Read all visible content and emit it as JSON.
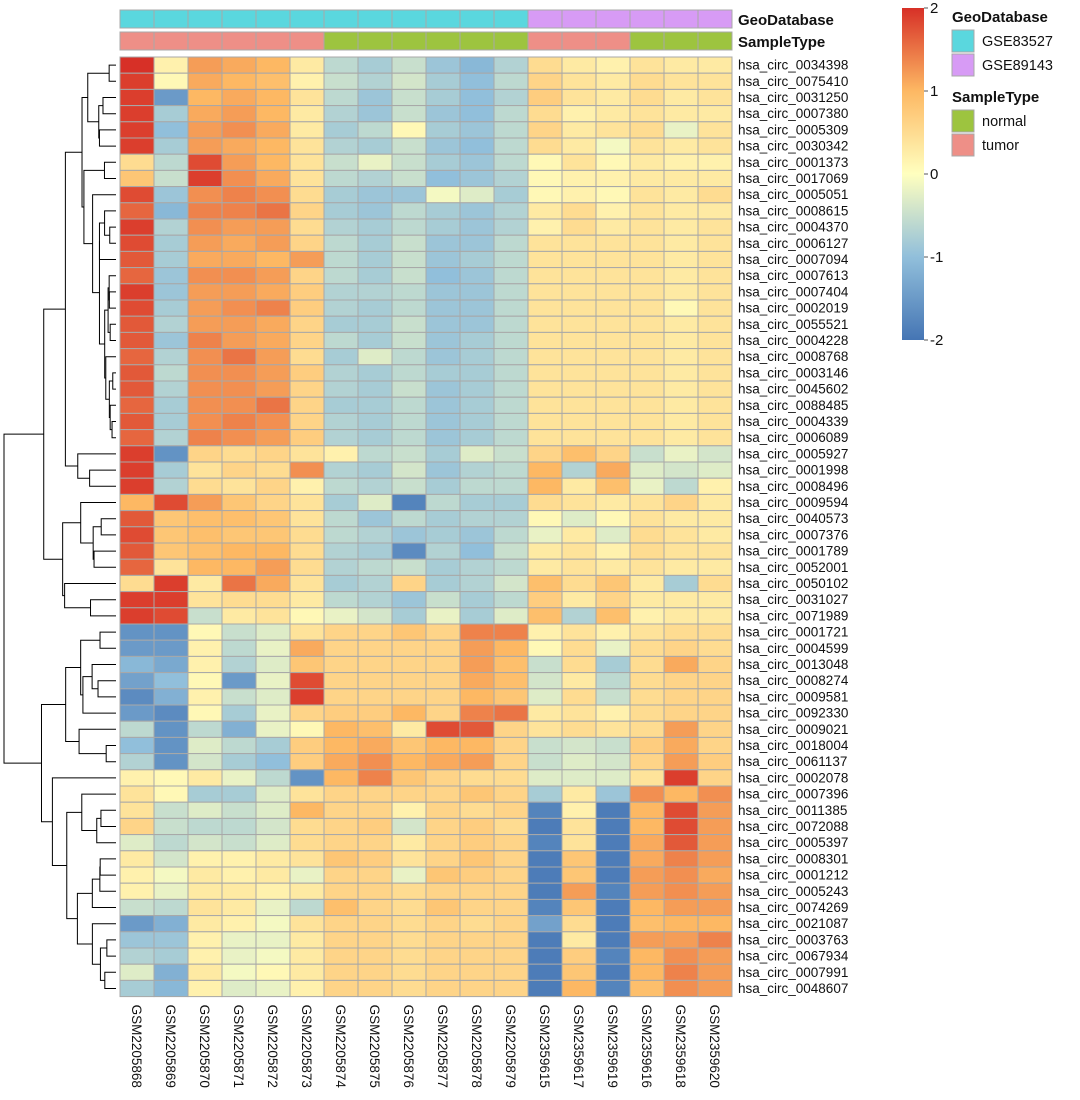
{
  "chart_data": {
    "type": "heatmap",
    "title": "",
    "columns": [
      "GSM2205868",
      "GSM2205869",
      "GSM2205870",
      "GSM2205871",
      "GSM2205872",
      "GSM2205873",
      "GSM2205874",
      "GSM2205875",
      "GSM2205876",
      "GSM2205877",
      "GSM2205878",
      "GSM2205879",
      "GSM2359615",
      "GSM2359617",
      "GSM2359619",
      "GSM2359616",
      "GSM2359618",
      "GSM2359620"
    ],
    "rows": [
      "hsa_circ_0034398",
      "hsa_circ_0075410",
      "hsa_circ_0031250",
      "hsa_circ_0007380",
      "hsa_circ_0005309",
      "hsa_circ_0030342",
      "hsa_circ_0001373",
      "hsa_circ_0017069",
      "hsa_circ_0005051",
      "hsa_circ_0008615",
      "hsa_circ_0004370",
      "hsa_circ_0006127",
      "hsa_circ_0007094",
      "hsa_circ_0007613",
      "hsa_circ_0007404",
      "hsa_circ_0002019",
      "hsa_circ_0055521",
      "hsa_circ_0004228",
      "hsa_circ_0008768",
      "hsa_circ_0003146",
      "hsa_circ_0045602",
      "hsa_circ_0088485",
      "hsa_circ_0004339",
      "hsa_circ_0006089",
      "hsa_circ_0005927",
      "hsa_circ_0001998",
      "hsa_circ_0008496",
      "hsa_circ_0009594",
      "hsa_circ_0040573",
      "hsa_circ_0007376",
      "hsa_circ_0001789",
      "hsa_circ_0052001",
      "hsa_circ_0050102",
      "hsa_circ_0031027",
      "hsa_circ_0071989",
      "hsa_circ_0001721",
      "hsa_circ_0004599",
      "hsa_circ_0013048",
      "hsa_circ_0008274",
      "hsa_circ_0009581",
      "hsa_circ_0092330",
      "hsa_circ_0009021",
      "hsa_circ_0018004",
      "hsa_circ_0061137",
      "hsa_circ_0002078",
      "hsa_circ_0007396",
      "hsa_circ_0011385",
      "hsa_circ_0072088",
      "hsa_circ_0005397",
      "hsa_circ_0008301",
      "hsa_circ_0001212",
      "hsa_circ_0005243",
      "hsa_circ_0074269",
      "hsa_circ_0021087",
      "hsa_circ_0003763",
      "hsa_circ_0067934",
      "hsa_circ_0007991",
      "hsa_circ_0048607"
    ],
    "values": [
      [
        2.0,
        0.2,
        1.2,
        1.1,
        1.0,
        0.3,
        -0.6,
        -0.8,
        -0.5,
        -0.9,
        -1.1,
        -0.7,
        0.5,
        0.3,
        0.2,
        0.4,
        0.3,
        0.3
      ],
      [
        1.9,
        0.1,
        1.1,
        1.0,
        0.9,
        0.2,
        -0.5,
        -0.7,
        -0.4,
        -0.8,
        -1.0,
        -0.6,
        0.6,
        0.4,
        0.3,
        0.5,
        0.4,
        0.4
      ],
      [
        1.9,
        -1.5,
        1.0,
        1.1,
        1.0,
        0.4,
        -0.6,
        -0.9,
        -0.5,
        -0.8,
        -1.0,
        -0.7,
        0.7,
        0.4,
        0.3,
        0.5,
        0.3,
        0.4
      ],
      [
        1.9,
        -0.8,
        1.1,
        1.2,
        1.0,
        0.3,
        -0.7,
        -0.9,
        -0.5,
        -0.9,
        -1.0,
        -0.6,
        0.5,
        0.2,
        0.3,
        0.4,
        0.3,
        0.3
      ],
      [
        1.9,
        -1.0,
        1.2,
        1.3,
        1.1,
        0.3,
        -0.8,
        -0.6,
        0.1,
        -0.8,
        -0.9,
        -0.6,
        0.6,
        0.3,
        0.4,
        0.5,
        -0.2,
        0.4
      ],
      [
        1.9,
        -0.8,
        1.2,
        1.1,
        1.0,
        0.4,
        -0.7,
        -0.8,
        -0.5,
        -0.9,
        -1.0,
        -0.6,
        0.5,
        0.3,
        -0.1,
        0.4,
        0.3,
        0.4
      ],
      [
        0.5,
        -0.6,
        1.8,
        1.2,
        1.0,
        0.4,
        -0.5,
        -0.2,
        -0.5,
        -0.8,
        -0.9,
        -0.6,
        0.1,
        0.4,
        0.1,
        0.3,
        0.2,
        0.2
      ],
      [
        0.8,
        -0.5,
        1.9,
        1.3,
        1.1,
        0.4,
        -0.6,
        -0.7,
        -0.5,
        -1.0,
        -0.9,
        -0.7,
        0.1,
        0.2,
        0.2,
        0.3,
        0.3,
        0.3
      ],
      [
        1.8,
        -0.9,
        1.3,
        1.4,
        1.3,
        0.5,
        -0.8,
        -0.9,
        -0.9,
        -0.1,
        -0.3,
        -0.8,
        0.1,
        0.2,
        0.1,
        0.4,
        0.3,
        0.5
      ],
      [
        1.6,
        -1.1,
        1.4,
        1.4,
        1.5,
        0.6,
        -0.8,
        -0.9,
        -0.6,
        -0.8,
        -0.9,
        -0.7,
        0.3,
        0.5,
        0.2,
        0.4,
        0.3,
        0.3
      ],
      [
        1.9,
        -0.7,
        1.3,
        1.2,
        1.2,
        0.5,
        -0.7,
        -0.8,
        -0.6,
        -0.8,
        -0.9,
        -0.7,
        0.2,
        0.5,
        0.3,
        0.4,
        0.3,
        0.4
      ],
      [
        1.8,
        -0.8,
        1.2,
        1.1,
        1.2,
        0.6,
        -0.6,
        -0.8,
        -0.5,
        -0.9,
        -0.9,
        -0.6,
        0.4,
        0.4,
        0.4,
        0.4,
        0.3,
        0.4
      ],
      [
        1.7,
        -0.8,
        1.1,
        1.1,
        1.0,
        1.2,
        -0.6,
        -0.8,
        -0.5,
        -0.9,
        -0.8,
        -0.6,
        0.4,
        0.4,
        0.4,
        0.4,
        0.3,
        0.4
      ],
      [
        1.6,
        -0.9,
        1.3,
        1.3,
        1.2,
        0.6,
        -0.6,
        -0.8,
        -0.5,
        -1.0,
        -0.9,
        -0.6,
        0.4,
        0.4,
        0.4,
        0.4,
        0.3,
        0.4
      ],
      [
        1.9,
        -0.9,
        1.2,
        1.2,
        1.1,
        0.7,
        -0.7,
        -0.7,
        -0.6,
        -0.9,
        -0.9,
        -0.6,
        0.4,
        0.4,
        0.4,
        0.4,
        0.3,
        0.4
      ],
      [
        1.8,
        -0.8,
        1.2,
        1.3,
        1.4,
        0.7,
        -0.7,
        -0.8,
        -0.6,
        -0.9,
        -0.9,
        -0.6,
        0.4,
        0.4,
        0.4,
        0.4,
        0.1,
        0.4
      ],
      [
        1.7,
        -0.7,
        1.2,
        1.2,
        1.1,
        0.6,
        -0.8,
        -0.8,
        -0.5,
        -0.9,
        -0.9,
        -0.6,
        0.4,
        0.4,
        0.4,
        0.4,
        0.3,
        0.4
      ],
      [
        1.7,
        -0.9,
        1.4,
        1.2,
        1.1,
        0.6,
        -0.6,
        -0.8,
        -0.5,
        -0.9,
        -0.8,
        -0.6,
        0.4,
        0.4,
        0.4,
        0.4,
        0.3,
        0.4
      ],
      [
        1.6,
        -0.7,
        1.3,
        1.5,
        1.2,
        0.5,
        -0.8,
        -0.3,
        -0.6,
        -0.9,
        -0.8,
        -0.6,
        0.4,
        0.4,
        0.4,
        0.4,
        0.3,
        0.4
      ],
      [
        1.7,
        -0.6,
        1.3,
        1.3,
        1.2,
        0.7,
        -0.7,
        -0.8,
        -0.6,
        -0.8,
        -0.8,
        -0.6,
        0.4,
        0.4,
        0.4,
        0.4,
        0.3,
        0.4
      ],
      [
        1.7,
        -0.7,
        1.3,
        1.3,
        1.2,
        0.6,
        -0.7,
        -0.8,
        -0.5,
        -0.9,
        -0.8,
        -0.6,
        0.4,
        0.4,
        0.4,
        0.4,
        0.3,
        0.4
      ],
      [
        1.6,
        -0.8,
        1.3,
        1.3,
        1.5,
        0.6,
        -0.8,
        -0.8,
        -0.6,
        -0.9,
        -0.8,
        -0.6,
        0.4,
        0.4,
        0.4,
        0.4,
        0.3,
        0.4
      ],
      [
        1.7,
        -0.8,
        1.3,
        1.4,
        1.3,
        0.6,
        -0.7,
        -0.8,
        -0.6,
        -0.9,
        -0.8,
        -0.6,
        0.4,
        0.4,
        0.4,
        0.4,
        0.3,
        0.4
      ],
      [
        1.6,
        -0.7,
        1.4,
        1.3,
        1.2,
        0.7,
        -0.7,
        -0.8,
        -0.6,
        -0.9,
        -0.8,
        -0.6,
        0.4,
        0.4,
        0.4,
        0.4,
        0.3,
        0.4
      ],
      [
        1.9,
        -1.6,
        0.6,
        0.5,
        0.6,
        0.4,
        0.2,
        -0.6,
        -0.5,
        -0.8,
        -0.3,
        -0.5,
        0.6,
        0.9,
        0.6,
        -0.5,
        -0.2,
        -0.4
      ],
      [
        1.9,
        -0.8,
        0.4,
        0.6,
        0.5,
        1.3,
        -0.7,
        -0.8,
        -0.4,
        -0.9,
        -0.7,
        -0.6,
        1.0,
        -0.7,
        1.1,
        -0.3,
        -0.4,
        -0.3
      ],
      [
        1.9,
        -0.7,
        0.5,
        0.4,
        0.6,
        0.2,
        -0.6,
        -0.7,
        -0.5,
        -0.8,
        -0.6,
        -0.6,
        1.0,
        0.3,
        0.9,
        -0.2,
        -0.6,
        0.2
      ],
      [
        1.0,
        1.8,
        1.2,
        0.8,
        0.6,
        0.4,
        -0.8,
        -0.3,
        -1.8,
        -0.6,
        -0.8,
        -0.8,
        0.5,
        0.4,
        0.3,
        0.4,
        0.6,
        0.3
      ],
      [
        1.7,
        0.8,
        0.9,
        0.9,
        0.8,
        0.4,
        -0.6,
        -0.9,
        -0.6,
        -0.8,
        -0.7,
        -0.7,
        0.1,
        -0.3,
        0.1,
        0.4,
        0.3,
        0.3
      ],
      [
        1.8,
        0.8,
        0.9,
        0.8,
        0.8,
        0.5,
        -0.6,
        -0.7,
        -0.9,
        -0.8,
        -0.9,
        -0.6,
        -0.2,
        0.3,
        -0.3,
        0.5,
        0.4,
        0.3
      ],
      [
        1.7,
        0.8,
        0.9,
        1.0,
        1.0,
        0.5,
        -0.7,
        -0.8,
        -1.7,
        -0.7,
        -1.0,
        -0.5,
        0.3,
        0.4,
        0.2,
        0.5,
        0.4,
        0.4
      ],
      [
        1.6,
        0.4,
        1.0,
        1.0,
        1.2,
        0.5,
        -0.7,
        -0.6,
        -0.5,
        -0.8,
        -0.7,
        -0.6,
        0.3,
        0.4,
        0.3,
        0.4,
        0.3,
        0.3
      ],
      [
        0.5,
        1.9,
        0.3,
        1.5,
        1.1,
        0.4,
        -0.8,
        -0.7,
        0.6,
        -0.8,
        -0.7,
        -0.4,
        0.9,
        0.5,
        0.8,
        0.3,
        -0.8,
        0.5
      ],
      [
        1.9,
        1.9,
        0.4,
        0.5,
        0.5,
        0.3,
        -0.6,
        -0.7,
        -0.9,
        -0.5,
        -0.8,
        -0.6,
        0.7,
        0.3,
        0.6,
        0.3,
        0.3,
        0.3
      ],
      [
        1.9,
        1.8,
        -0.5,
        0.3,
        0.4,
        0.1,
        -0.2,
        -0.4,
        -0.8,
        -0.2,
        -0.8,
        -0.3,
        0.9,
        -0.7,
        0.9,
        0.2,
        0.3,
        0.3
      ],
      [
        -1.6,
        -1.6,
        0.1,
        -0.5,
        -0.3,
        0.4,
        0.6,
        0.6,
        0.8,
        0.6,
        1.4,
        1.4,
        0.2,
        0.4,
        0.2,
        0.4,
        0.5,
        0.5
      ],
      [
        -1.5,
        -1.5,
        0.2,
        -0.6,
        -0.2,
        1.1,
        0.6,
        0.6,
        0.6,
        0.6,
        1.2,
        1.0,
        0.1,
        0.5,
        -0.2,
        0.5,
        0.6,
        0.5
      ],
      [
        -1.1,
        -1.3,
        0.2,
        -0.7,
        -0.3,
        0.8,
        0.6,
        0.6,
        0.6,
        0.6,
        1.2,
        0.9,
        -0.5,
        0.5,
        -0.8,
        0.5,
        1.1,
        0.6
      ],
      [
        -1.4,
        -1.0,
        0.1,
        -1.5,
        -0.2,
        1.8,
        0.6,
        0.6,
        0.6,
        0.6,
        1.1,
        0.9,
        -0.4,
        0.3,
        -0.6,
        0.5,
        0.6,
        0.6
      ],
      [
        -1.7,
        -1.2,
        0.2,
        -0.5,
        -0.3,
        1.9,
        0.6,
        0.6,
        0.6,
        0.6,
        1.0,
        0.8,
        -0.3,
        0.5,
        -0.5,
        0.5,
        0.6,
        0.6
      ],
      [
        -1.5,
        -1.7,
        0.1,
        -0.8,
        -0.2,
        0.6,
        0.7,
        0.7,
        1.0,
        0.6,
        1.4,
        1.5,
        0.3,
        0.4,
        0.2,
        0.5,
        0.6,
        0.6
      ],
      [
        -0.6,
        -1.6,
        -0.6,
        -1.2,
        -0.2,
        0.1,
        1.0,
        0.9,
        0.3,
        1.8,
        1.7,
        0.6,
        0.4,
        0.5,
        0.4,
        0.5,
        1.2,
        0.6
      ],
      [
        -1.0,
        -1.6,
        -0.3,
        -0.6,
        -0.8,
        0.7,
        1.0,
        1.1,
        0.8,
        1.0,
        1.0,
        0.6,
        -0.5,
        -0.4,
        -0.5,
        0.7,
        1.1,
        0.6
      ],
      [
        -0.7,
        -1.6,
        -0.4,
        -0.8,
        -1.0,
        0.7,
        1.1,
        1.3,
        1.0,
        1.1,
        1.2,
        0.6,
        -0.5,
        -0.3,
        -0.4,
        0.6,
        1.2,
        0.7
      ],
      [
        0.2,
        0.1,
        0.3,
        -0.2,
        -0.6,
        -1.6,
        1.0,
        1.4,
        0.8,
        0.6,
        0.5,
        0.5,
        -0.3,
        -0.3,
        -0.3,
        0.4,
        1.9,
        0.6
      ],
      [
        0.4,
        0.1,
        -0.8,
        -0.8,
        -0.3,
        0.4,
        0.6,
        0.6,
        0.6,
        0.6,
        0.8,
        0.6,
        -0.8,
        0.3,
        -0.9,
        1.3,
        1.0,
        1.3
      ],
      [
        0.4,
        -0.5,
        -0.3,
        -0.5,
        -0.3,
        1.0,
        0.6,
        0.6,
        0.2,
        0.6,
        0.5,
        0.6,
        -1.8,
        0.2,
        -1.9,
        1.0,
        1.8,
        1.2
      ],
      [
        0.6,
        -0.5,
        -0.6,
        -0.6,
        -0.4,
        0.5,
        0.6,
        0.7,
        -0.4,
        0.6,
        0.7,
        0.5,
        -1.9,
        0.4,
        -1.9,
        1.0,
        1.8,
        1.2
      ],
      [
        -0.3,
        -0.6,
        -0.4,
        -0.5,
        -0.3,
        0.5,
        0.6,
        0.6,
        0.3,
        0.6,
        0.7,
        0.6,
        -1.8,
        0.4,
        -1.9,
        1.1,
        1.7,
        1.2
      ],
      [
        0.3,
        -0.4,
        0.2,
        0.2,
        0.3,
        0.4,
        0.8,
        0.7,
        0.4,
        0.6,
        0.8,
        0.6,
        -1.9,
        0.8,
        -1.9,
        1.1,
        1.4,
        1.2
      ],
      [
        0.2,
        -0.1,
        0.3,
        0.2,
        0.3,
        -0.2,
        0.6,
        0.6,
        -0.2,
        0.8,
        0.7,
        0.6,
        -1.9,
        0.8,
        -1.9,
        1.2,
        1.3,
        1.1
      ],
      [
        0.2,
        -0.2,
        0.3,
        0.3,
        0.2,
        0.3,
        0.6,
        0.6,
        0.5,
        0.6,
        0.6,
        0.6,
        -1.9,
        1.2,
        -1.8,
        1.2,
        1.3,
        1.2
      ],
      [
        -0.5,
        -0.6,
        0.4,
        0.3,
        -0.2,
        -0.6,
        0.9,
        0.6,
        0.5,
        0.8,
        0.6,
        0.6,
        -1.8,
        0.8,
        -1.9,
        1.0,
        1.2,
        1.2
      ],
      [
        -1.5,
        -1.2,
        0.3,
        0.2,
        -0.1,
        0.4,
        0.6,
        0.6,
        0.5,
        0.6,
        0.5,
        0.6,
        -1.4,
        0.5,
        -1.9,
        0.9,
        1.0,
        1.0
      ],
      [
        -0.9,
        -0.9,
        0.2,
        -0.2,
        -0.2,
        0.3,
        0.6,
        0.6,
        0.5,
        0.6,
        0.6,
        0.6,
        -1.9,
        0.3,
        -1.9,
        1.2,
        1.2,
        1.4
      ],
      [
        -0.7,
        -0.8,
        0.2,
        -0.2,
        -0.1,
        0.3,
        0.6,
        0.6,
        0.5,
        0.6,
        0.6,
        0.6,
        -1.9,
        0.7,
        -1.8,
        1.0,
        1.3,
        1.2
      ],
      [
        -0.3,
        -1.2,
        0.3,
        -0.1,
        0.1,
        0.3,
        0.6,
        0.6,
        0.5,
        0.6,
        0.6,
        0.6,
        -1.9,
        0.8,
        -1.9,
        1.0,
        1.4,
        1.2
      ],
      [
        -0.8,
        -1.1,
        0.2,
        -0.3,
        -0.2,
        0.2,
        0.6,
        0.6,
        0.5,
        0.6,
        0.6,
        0.6,
        -1.9,
        1.0,
        -1.8,
        0.9,
        1.3,
        1.2
      ]
    ],
    "annotations": [
      {
        "track": "GeoDatabase",
        "values": [
          "GSE83527",
          "GSE83527",
          "GSE83527",
          "GSE83527",
          "GSE83527",
          "GSE83527",
          "GSE83527",
          "GSE83527",
          "GSE83527",
          "GSE83527",
          "GSE83527",
          "GSE83527",
          "GSE89143",
          "GSE89143",
          "GSE89143",
          "GSE89143",
          "GSE89143",
          "GSE89143"
        ]
      },
      {
        "track": "SampleType",
        "values": [
          "tumor",
          "tumor",
          "tumor",
          "tumor",
          "tumor",
          "tumor",
          "normal",
          "normal",
          "normal",
          "normal",
          "normal",
          "normal",
          "tumor",
          "tumor",
          "tumor",
          "normal",
          "normal",
          "normal"
        ]
      }
    ],
    "legend_groups": [
      {
        "title": "GeoDatabase",
        "entries": [
          {
            "label": "GSE83527",
            "color": "#5ad7de"
          },
          {
            "label": "GSE89143",
            "color": "#d79bf5"
          }
        ]
      },
      {
        "title": "SampleType",
        "entries": [
          {
            "label": "normal",
            "color": "#9dc43f"
          },
          {
            "label": "tumor",
            "color": "#ee8f87"
          }
        ]
      }
    ],
    "color_scale": {
      "min": -2,
      "max": 2,
      "ticks": [
        "2",
        "1",
        "0",
        "-1",
        "-2"
      ],
      "tick_values": [
        2,
        1,
        0,
        -1,
        -2
      ],
      "stops": [
        "#4575b4",
        "#91bfdb",
        "#ffffbf",
        "#fdb863",
        "#d73027"
      ]
    },
    "row_dendrogram": true,
    "cell_border_color": "#a8a8a8"
  }
}
